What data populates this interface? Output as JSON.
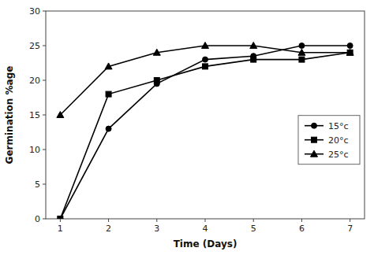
{
  "chart_data": {
    "type": "line",
    "xlabel": "Time (Days)",
    "ylabel": "Germination %age",
    "x": [
      1,
      2,
      3,
      4,
      5,
      6,
      7
    ],
    "series": [
      {
        "name": "15°c",
        "color": "#000000",
        "marker": "circle",
        "values": [
          0,
          13,
          19.5,
          23,
          23.5,
          25,
          25
        ]
      },
      {
        "name": "20°c",
        "color": "#000000",
        "marker": "square",
        "values": [
          0,
          18,
          20,
          22,
          23,
          23,
          24
        ]
      },
      {
        "name": "25°c",
        "color": "#000000",
        "marker": "triangle",
        "values": [
          15,
          22,
          24,
          25,
          25,
          24,
          24
        ]
      }
    ],
    "xlim": [
      0.7,
      7.3
    ],
    "xticks": [
      1,
      2,
      3,
      4,
      5,
      6,
      7
    ],
    "ylim": [
      0,
      30
    ],
    "yticks": [
      0,
      5,
      10,
      15,
      20,
      25,
      30
    ],
    "legend": "right"
  }
}
